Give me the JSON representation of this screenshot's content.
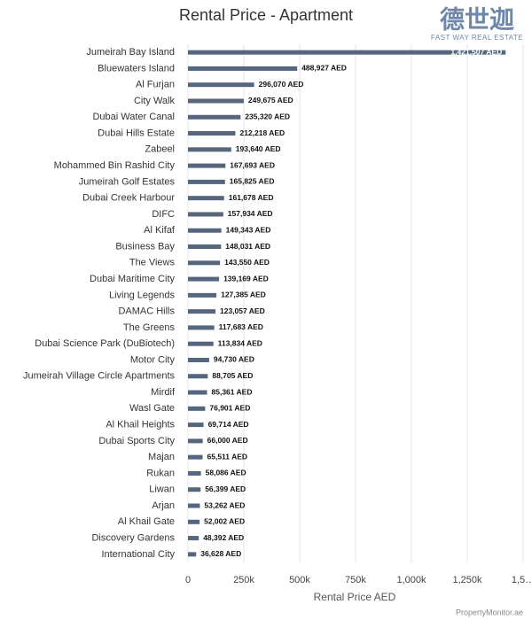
{
  "chart_data": {
    "type": "bar",
    "orientation": "horizontal",
    "title": "Rental Price - Apartment",
    "logo": {
      "text": "德世迦",
      "subtext": "FAST WAY REAL ESTATE"
    },
    "source": "PropertyMonitor.ae",
    "x_label": "Rental Price AED",
    "color": "#56667d",
    "categories": [
      "Jumeirah Bay Island",
      "Bluewaters Island",
      "Al Furjan",
      "City Walk",
      "Dubai Water Canal",
      "Dubai Hills Estate",
      "Zabeel",
      "Mohammed Bin Rashid City",
      "Jumeirah Golf Estates",
      "Dubai Creek Harbour",
      "DIFC",
      "Al Kifaf",
      "Business Bay",
      "The Views",
      "Dubai Maritime City",
      "Living Legends",
      "DAMAC Hills",
      "The Greens",
      "Dubai Science Park (DuBiotech)",
      "Motor City",
      "Jumeirah Village Circle Apartments",
      "Mirdif",
      "Wasl Gate",
      "Al Khail Heights",
      "Dubai Sports City",
      "Majan",
      "Rukan",
      "Liwan",
      "Arjan",
      "Al Khail Gate",
      "Discovery Gardens",
      "International City"
    ],
    "values": [
      1421507,
      488927,
      296070,
      249675,
      235320,
      212218,
      193640,
      167693,
      165825,
      161678,
      157934,
      149343,
      148031,
      143550,
      139169,
      127385,
      123057,
      117683,
      113834,
      94730,
      88705,
      85361,
      76901,
      69714,
      66000,
      65511,
      58086,
      56399,
      53262,
      52002,
      48392,
      36628
    ],
    "value_labels": [
      "1,421,507 AED",
      "488,927 AED",
      "296,070 AED",
      "249,675 AED",
      "235,320 AED",
      "212,218 AED",
      "193,640 AED",
      "167,693 AED",
      "165,825 AED",
      "161,678 AED",
      "157,934 AED",
      "149,343 AED",
      "148,031 AED",
      "143,550 AED",
      "139,169 AED",
      "127,385 AED",
      "123,057 AED",
      "117,683 AED",
      "113,834 AED",
      "94,730 AED",
      "88,705 AED",
      "85,361 AED",
      "76,901 AED",
      "69,714 AED",
      "66,000 AED",
      "65,511 AED",
      "58,086 AED",
      "56,399 AED",
      "53,262 AED",
      "52,002 AED",
      "48,392 AED",
      "36,628 AED"
    ],
    "xlim": [
      0,
      1500000
    ],
    "xticks": [
      0,
      {
        "value": 250000,
        "label": "250k"
      },
      {
        "value": 500000,
        "label": "500k"
      },
      {
        "value": 750000,
        "label": "750k"
      },
      {
        "value": 1000000,
        "label": "1,000k"
      },
      {
        "value": 1250000,
        "label": "1,250k"
      },
      {
        "value": 1500000,
        "label": "1,5…"
      }
    ],
    "grid": true
  }
}
